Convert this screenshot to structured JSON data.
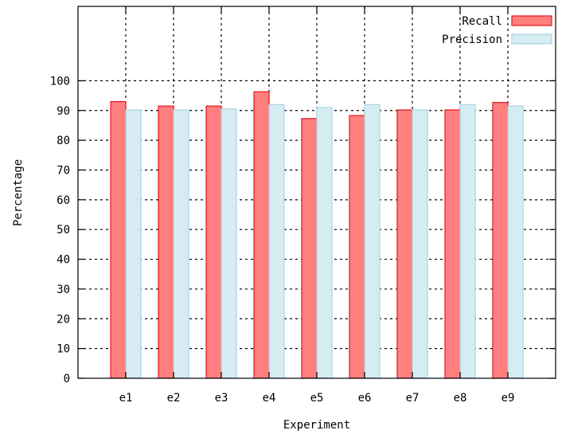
{
  "chart_data": {
    "type": "bar",
    "title": "",
    "xlabel": "Experiment",
    "ylabel": "Percentage",
    "categories": [
      "e1",
      "e2",
      "e3",
      "e4",
      "e5",
      "e6",
      "e7",
      "e8",
      "e9"
    ],
    "series": [
      {
        "name": "Recall",
        "values": [
          93,
          91.5,
          91.5,
          96.3,
          87.3,
          88.3,
          90.2,
          90.2,
          92.7
        ],
        "fill": "#ff7f7f",
        "stroke": "#e8141c"
      },
      {
        "name": "Precision",
        "values": [
          90.2,
          90.2,
          90.5,
          92,
          91,
          92,
          90.2,
          92,
          91.5
        ],
        "fill": "#d6ecf3",
        "stroke": "#a8d4e3"
      }
    ],
    "ylim": [
      0,
      125
    ],
    "yticks": [
      0,
      10,
      20,
      30,
      40,
      50,
      60,
      70,
      80,
      90,
      100
    ],
    "grid": true,
    "legend_position": "top-right"
  }
}
